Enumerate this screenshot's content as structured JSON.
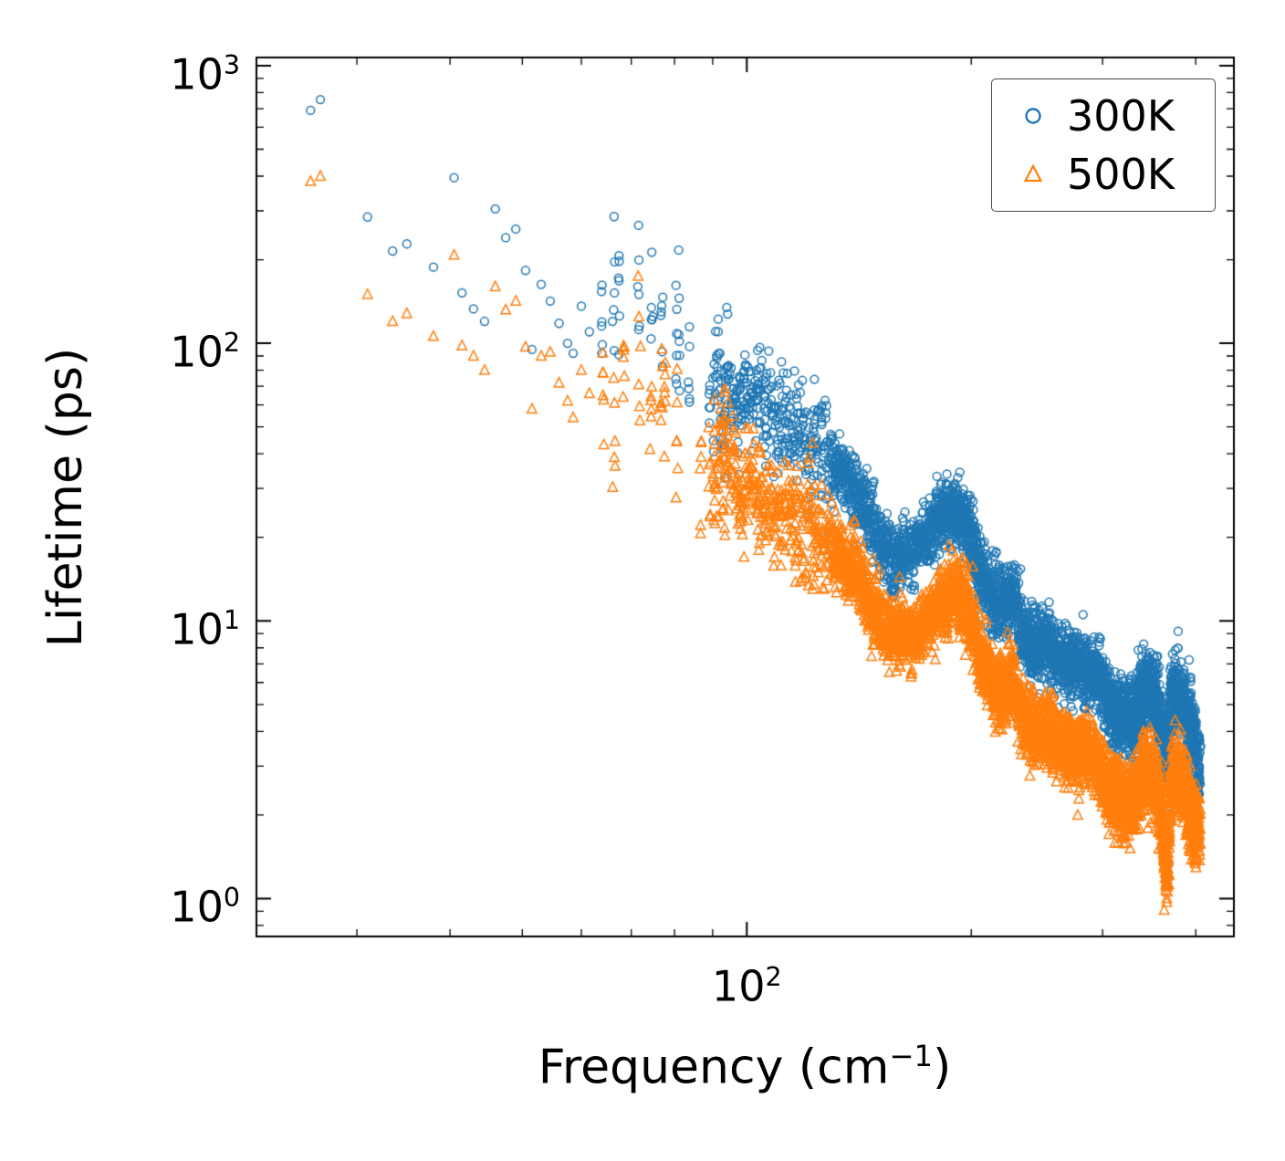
{
  "chart_data": {
    "type": "scatter",
    "title": "",
    "xlabel": "Frequency (cm^-1)",
    "xlabel_parts": {
      "pre": "Frequency (cm",
      "sup": "−1",
      "post": ")"
    },
    "ylabel": "Lifetime (ps)",
    "xscale": "log",
    "yscale": "log",
    "xlim": [
      22,
      450
    ],
    "ylim": [
      0.73,
      1070
    ],
    "grid": false,
    "x_ticks": [
      {
        "base": "10",
        "exp": "2",
        "value": 100
      }
    ],
    "y_ticks": [
      {
        "base": "10",
        "exp": "3",
        "value": 1000
      },
      {
        "base": "10",
        "exp": "2",
        "value": 100
      },
      {
        "base": "10",
        "exp": "1",
        "value": 10
      },
      {
        "base": "10",
        "exp": "0",
        "value": 1
      }
    ],
    "legend": {
      "position": "upper right"
    },
    "series": [
      {
        "name": "300K",
        "marker": "circle",
        "color": "#1f77b4",
        "sparse_points": [
          [
            26,
            690
          ],
          [
            26.8,
            755
          ],
          [
            31,
            285
          ],
          [
            33.5,
            215
          ],
          [
            35,
            228
          ],
          [
            38,
            188
          ],
          [
            40.5,
            395
          ],
          [
            41.5,
            152
          ],
          [
            43,
            133
          ],
          [
            44.5,
            120
          ],
          [
            46,
            305
          ],
          [
            47.5,
            240
          ],
          [
            49,
            258
          ],
          [
            50.5,
            183
          ],
          [
            51.5,
            95
          ],
          [
            53,
            163
          ],
          [
            54.5,
            142
          ],
          [
            56,
            118
          ],
          [
            57.5,
            100
          ],
          [
            58.5,
            92
          ],
          [
            60,
            136
          ],
          [
            61.5,
            110
          ]
        ],
        "trend": [
          [
            60,
            130
          ],
          [
            70,
            150
          ],
          [
            80,
            88
          ],
          [
            90,
            70
          ],
          [
            100,
            62
          ],
          [
            110,
            52
          ],
          [
            120,
            45
          ],
          [
            130,
            38
          ],
          [
            140,
            30
          ],
          [
            150,
            20
          ],
          [
            158,
            17
          ],
          [
            168,
            18
          ],
          [
            178,
            22
          ],
          [
            188,
            25
          ],
          [
            196,
            24
          ],
          [
            205,
            15
          ],
          [
            212,
            12.5
          ],
          [
            220,
            11.5
          ],
          [
            228,
            12
          ],
          [
            235,
            9
          ],
          [
            242,
            8
          ],
          [
            250,
            8.2
          ],
          [
            258,
            7.6
          ],
          [
            266,
            7.2
          ],
          [
            275,
            7
          ],
          [
            285,
            6.8
          ],
          [
            295,
            6.4
          ],
          [
            303,
            5.2
          ],
          [
            312,
            4.7
          ],
          [
            320,
            4.5
          ],
          [
            328,
            4.4
          ],
          [
            336,
            5
          ],
          [
            344,
            5.6
          ],
          [
            352,
            5.3
          ],
          [
            360,
            4.2
          ],
          [
            366,
            3.1
          ],
          [
            372,
            5.6
          ],
          [
            380,
            5.4
          ],
          [
            388,
            4.8
          ],
          [
            395,
            4
          ],
          [
            402,
            3.1
          ]
        ],
        "sigma_profile": [
          {
            "upto": 95,
            "sigma": 0.14
          },
          {
            "upto": 130,
            "sigma": 0.1
          },
          {
            "upto": 310,
            "sigma": 0.065
          },
          {
            "upto": 1000,
            "sigma": 0.07
          }
        ],
        "gen_segments": [
          [
            62,
            90,
            60
          ],
          [
            90,
            130,
            360
          ],
          [
            130,
            180,
            760
          ],
          [
            180,
            240,
            950
          ],
          [
            240,
            310,
            950
          ],
          [
            310,
            405,
            1400
          ]
        ]
      },
      {
        "name": "500K",
        "marker": "triangle",
        "color": "#ff7f0e",
        "sparse_points": [
          [
            26,
            383
          ],
          [
            26.8,
            400
          ],
          [
            31,
            150
          ],
          [
            33.5,
            120
          ],
          [
            35,
            128
          ],
          [
            38,
            106
          ],
          [
            40.5,
            208
          ],
          [
            41.5,
            98
          ],
          [
            43,
            90
          ],
          [
            44.5,
            80
          ],
          [
            46,
            160
          ],
          [
            47.5,
            132
          ],
          [
            49,
            142
          ],
          [
            50.5,
            97
          ],
          [
            51.5,
            58
          ],
          [
            53,
            90
          ],
          [
            54.5,
            93
          ],
          [
            56,
            72
          ],
          [
            57.5,
            62
          ],
          [
            58.5,
            54
          ],
          [
            60,
            80
          ],
          [
            61.5,
            66
          ]
        ],
        "trend": [
          [
            60,
            70
          ],
          [
            70,
            75
          ],
          [
            80,
            46
          ],
          [
            90,
            36
          ],
          [
            100,
            31
          ],
          [
            110,
            26
          ],
          [
            120,
            22
          ],
          [
            130,
            19
          ],
          [
            140,
            15
          ],
          [
            150,
            10
          ],
          [
            158,
            8.5
          ],
          [
            168,
            9
          ],
          [
            178,
            11
          ],
          [
            188,
            12.5
          ],
          [
            196,
            12
          ],
          [
            205,
            7.5
          ],
          [
            212,
            6.2
          ],
          [
            220,
            5.7
          ],
          [
            228,
            6
          ],
          [
            235,
            4.5
          ],
          [
            242,
            4
          ],
          [
            250,
            4.1
          ],
          [
            258,
            3.8
          ],
          [
            266,
            3.6
          ],
          [
            275,
            3.5
          ],
          [
            285,
            3.4
          ],
          [
            295,
            3.2
          ],
          [
            303,
            2.6
          ],
          [
            312,
            2.4
          ],
          [
            320,
            2.2
          ],
          [
            328,
            2.2
          ],
          [
            336,
            2.5
          ],
          [
            344,
            2.9
          ],
          [
            352,
            2.7
          ],
          [
            360,
            2.1
          ],
          [
            366,
            1.15
          ],
          [
            372,
            2.9
          ],
          [
            380,
            2.7
          ],
          [
            388,
            2.4
          ],
          [
            395,
            2
          ],
          [
            402,
            1.85
          ]
        ],
        "sigma_profile": [
          {
            "upto": 95,
            "sigma": 0.14
          },
          {
            "upto": 130,
            "sigma": 0.1
          },
          {
            "upto": 310,
            "sigma": 0.065
          },
          {
            "upto": 1000,
            "sigma": 0.07
          }
        ],
        "gen_segments": [
          [
            62,
            90,
            60
          ],
          [
            90,
            130,
            360
          ],
          [
            130,
            180,
            760
          ],
          [
            180,
            240,
            950
          ],
          [
            240,
            310,
            950
          ],
          [
            310,
            405,
            1400
          ]
        ]
      }
    ]
  }
}
